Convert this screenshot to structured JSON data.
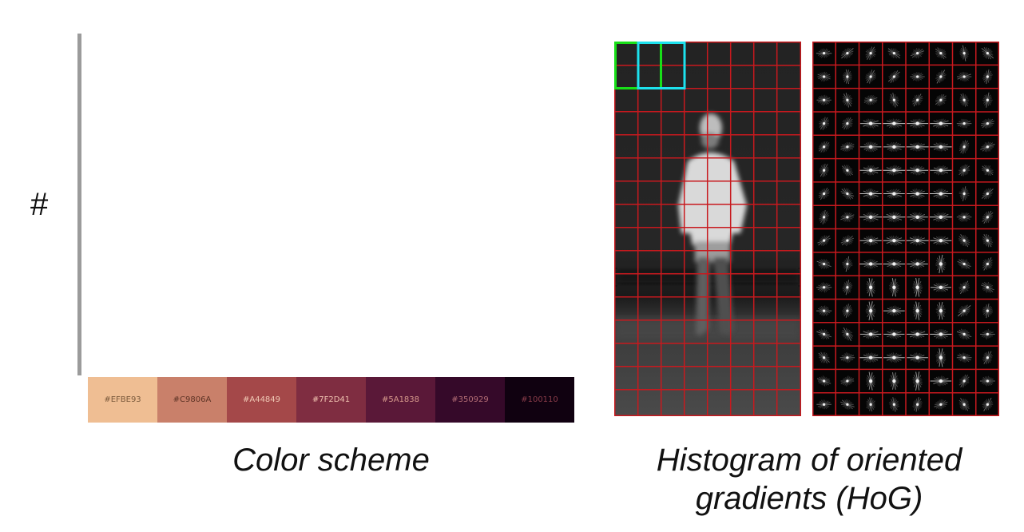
{
  "hash_text": "#",
  "palette": {
    "swatches": [
      {
        "hex": "#EFBE93",
        "label": "#EFBE93",
        "text_color": "#7a5a3c"
      },
      {
        "hex": "#C9806A",
        "label": "#C9806A",
        "text_color": "#5e3426"
      },
      {
        "hex": "#A44849",
        "label": "#A44849",
        "text_color": "#f0c9b5"
      },
      {
        "hex": "#7F2D41",
        "label": "#7F2D41",
        "text_color": "#efc2b0"
      },
      {
        "hex": "#5A1838",
        "label": "#5A1838",
        "text_color": "#d79a8c"
      },
      {
        "hex": "#350929",
        "label": "#350929",
        "text_color": "#b36d75"
      },
      {
        "hex": "#100110",
        "label": "#100110",
        "text_color": "#8a3c4a"
      }
    ]
  },
  "captions": {
    "left": "Color scheme",
    "right_line1": "Histogram of oriented",
    "right_line2": "gradients (HoG)"
  },
  "colors": {
    "grid": "#c8191e",
    "block_green": "#18e018",
    "block_cyan": "#1de2ee",
    "divider": "#9b9b9b"
  }
}
